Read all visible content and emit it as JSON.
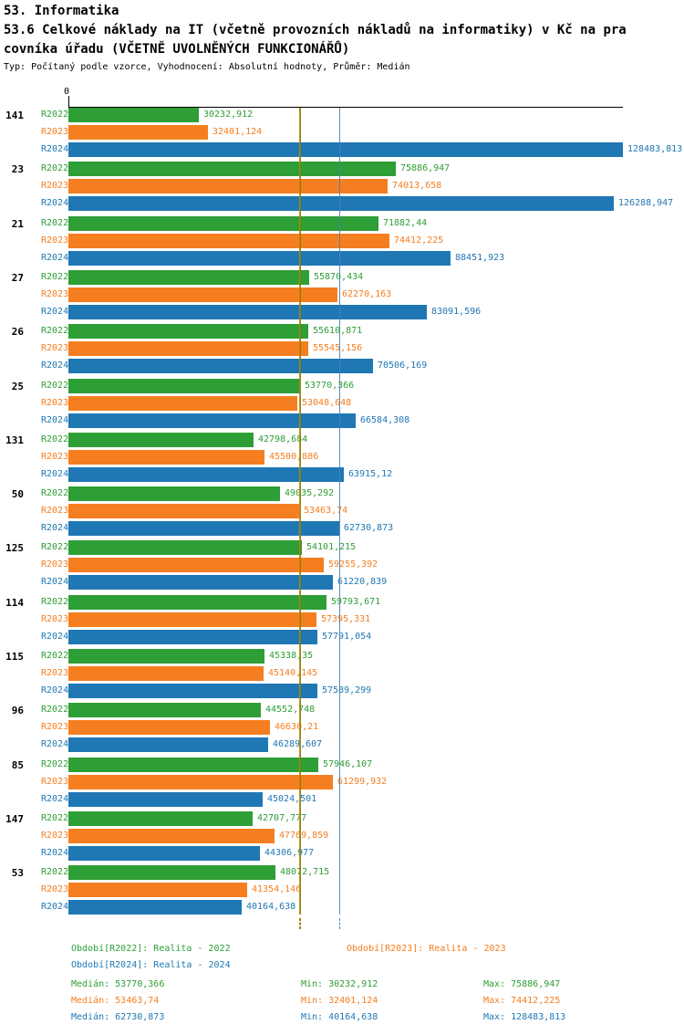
{
  "chart_data": {
    "type": "bar",
    "orientation": "horizontal",
    "title": "53. Informatika",
    "subtitle": "53.6 Celkové náklady na IT (včetně provozních nákladů na informatiky) v Kč na pracovníka úřadu (VČETNĚ UVOLNĚNÝCH FUNKCIONÁŘŮ)",
    "subtitle_line1": "53.6 Celkové náklady na IT (včetně provozních nákladů na informatiky) v Kč na pra",
    "subtitle_line2": "covníka úřadu (VČETNĚ UVOLNĚNÝCH FUNKCIONÁŘŮ)",
    "meta": "Typ: Počítaný podle vzorce, Vyhodnocení: Absolutní hodnoty, Průměr: Medián",
    "axis_zero_label": "0",
    "xlim": [
      0,
      128483.813
    ],
    "grid": false,
    "legend_position": "bottom",
    "categories": [
      "141",
      "23",
      "21",
      "27",
      "26",
      "25",
      "131",
      "50",
      "125",
      "114",
      "115",
      "96",
      "85",
      "147",
      "53"
    ],
    "series_names": [
      "R2022",
      "R2023",
      "R2024"
    ],
    "series_colors": [
      "#2e9e36",
      "#f57e20",
      "#1f77b4"
    ],
    "series": [
      {
        "name": "R2022",
        "color": "#2e9e36",
        "values": [
          30232.912,
          75886.947,
          71882.44,
          55870.434,
          55610.871,
          53770.366,
          42798.684,
          49035.292,
          54101.215,
          59793.671,
          45338.35,
          44552.748,
          57946.107,
          42707.777,
          48072.715
        ],
        "value_labels": [
          "30232,912",
          "75886,947",
          "71882,44",
          "55870,434",
          "55610,871",
          "53770,366",
          "42798,684",
          "49035,292",
          "54101,215",
          "59793,671",
          "45338,35",
          "44552,748",
          "57946,107",
          "42707,777",
          "48072,715"
        ]
      },
      {
        "name": "R2023",
        "color": "#f57e20",
        "values": [
          32401.124,
          74013.658,
          74412.225,
          62270.163,
          55545.156,
          53048.648,
          45500.886,
          53463.74,
          59255.392,
          57395.331,
          45140.145,
          46630.21,
          61299.932,
          47769.859,
          41354.146
        ],
        "value_labels": [
          "32401,124",
          "74013,658",
          "74412,225",
          "62270,163",
          "55545,156",
          "53048,648",
          "45500,886",
          "53463,74",
          "59255,392",
          "57395,331",
          "45140,145",
          "46630,21",
          "61299,932",
          "47769,859",
          "41354,146"
        ]
      },
      {
        "name": "R2024",
        "color": "#1f77b4",
        "values": [
          128483.813,
          126288.947,
          88451.923,
          83091.596,
          70506.169,
          66584.308,
          63915.12,
          62730.873,
          61220.839,
          57791.054,
          57589.299,
          46289.607,
          45024.501,
          44306.977,
          40164.638
        ],
        "value_labels": [
          "128483,813",
          "126288,947",
          "88451,923",
          "83091,596",
          "70506,169",
          "66584,308",
          "63915,12",
          "62730,873",
          "61220,839",
          "57791,054",
          "57589,299",
          "46289,607",
          "45024,501",
          "44306,977",
          "40164,638"
        ]
      }
    ],
    "medians": [
      {
        "series": "R2022",
        "value": 53770.366,
        "color": "#808000"
      },
      {
        "series": "R2023",
        "value": 53463.74,
        "color": "#b8860b"
      },
      {
        "series": "R2024",
        "value": 62730.873,
        "color": "#4682b4"
      }
    ]
  },
  "legend": {
    "items": [
      {
        "label": "Období[R2022]: Realita - 2022",
        "color": "#2e9e36"
      },
      {
        "label": "Období[R2023]: Realita - 2023",
        "color": "#f57e20"
      },
      {
        "label": "Období[R2024]: Realita - 2024",
        "color": "#1f77b4"
      }
    ]
  },
  "stats": {
    "rows": [
      {
        "median": "Medián: 53770,366",
        "min": "Min: 30232,912",
        "max": "Max: 75886,947",
        "color": "#2e9e36"
      },
      {
        "median": "Medián: 53463,74",
        "min": "Min: 32401,124",
        "max": "Max: 74412,225",
        "color": "#f57e20"
      },
      {
        "median": "Medián: 62730,873",
        "min": "Min: 40164,638",
        "max": "Max: 128483,813",
        "color": "#1f77b4"
      }
    ]
  }
}
